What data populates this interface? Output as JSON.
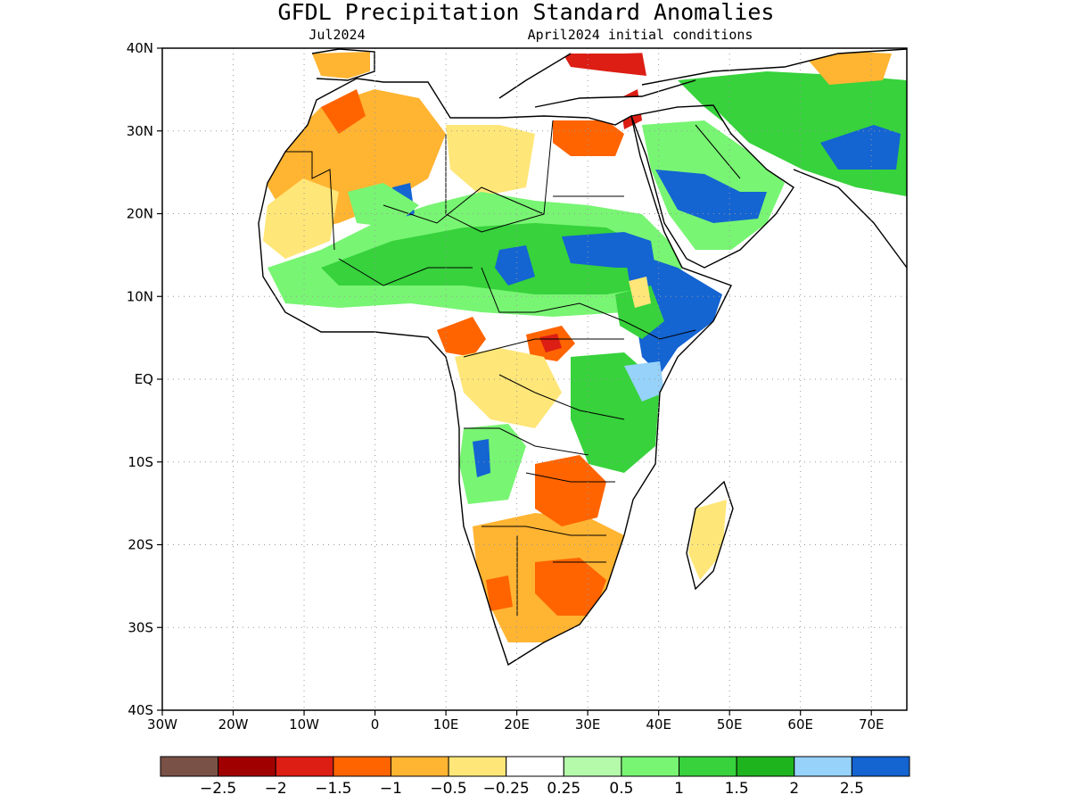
{
  "map": {
    "title": "GFDL Precipitation Standard Anomalies",
    "valid_month": "Jul2024",
    "initial_conditions": "April2024 initial conditions",
    "extent": {
      "lon": [
        -30,
        75
      ],
      "lat": [
        -40,
        40
      ]
    },
    "lat_labels": [
      "40N",
      "30N",
      "20N",
      "10N",
      "EQ",
      "10S",
      "20S",
      "30S",
      "40S"
    ],
    "lon_labels": [
      "30W",
      "20W",
      "10W",
      "0",
      "10E",
      "20E",
      "30E",
      "40E",
      "50E",
      "60E",
      "70E"
    ],
    "colorbar": {
      "colors": [
        "#7a5146",
        "#a00000",
        "#dc1e14",
        "#ff6400",
        "#ffb432",
        "#ffe678",
        "#ffffff",
        "#b4faaa",
        "#78f573",
        "#37d23c",
        "#1eb41e",
        "#96d2fa",
        "#1464d2"
      ],
      "labels": [
        "−2.5",
        "−2",
        "−1.5",
        "−1",
        "−0.5",
        "−0.25",
        "0.25",
        "0.5",
        "1",
        "1.5",
        "2",
        "2.5"
      ]
    }
  }
}
